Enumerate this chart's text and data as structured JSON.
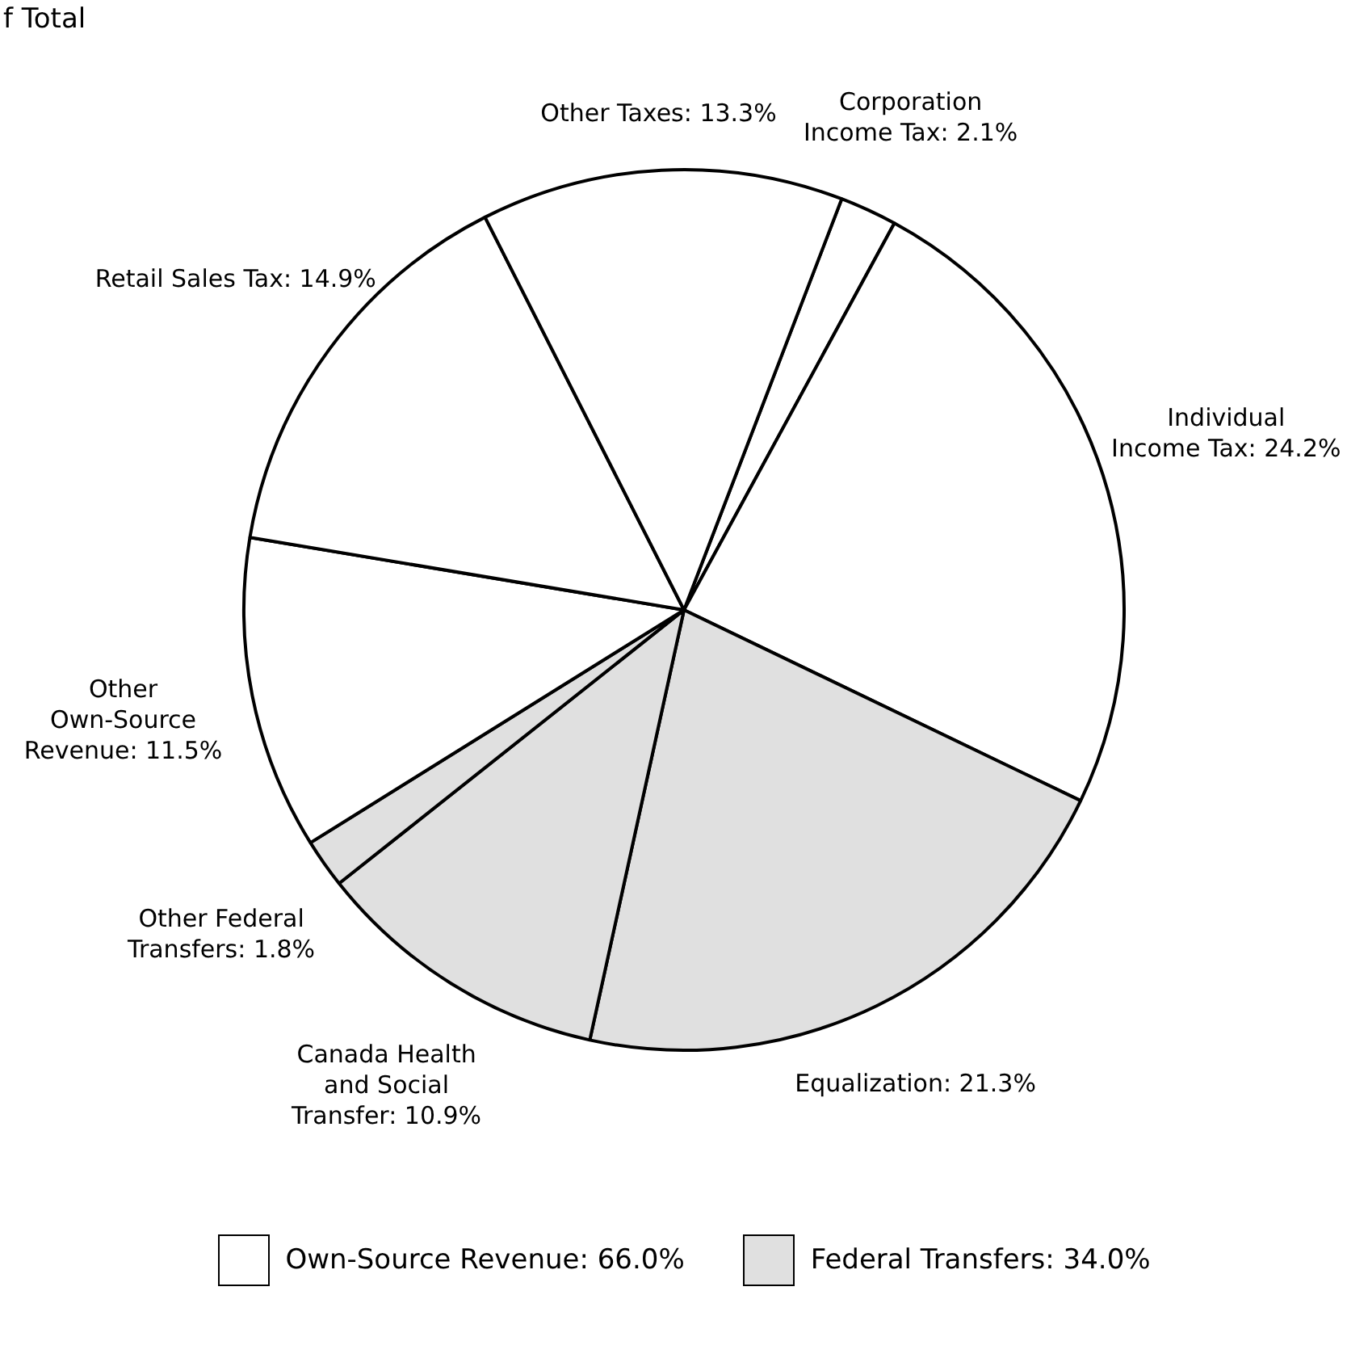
{
  "chart_data": {
    "type": "pie",
    "title": "f Total",
    "categories": [
      "Corporation Income Tax",
      "Individual Income Tax",
      "Equalization",
      "Canada Health and Social Transfer",
      "Other Federal Transfers",
      "Other Own-Source Revenue",
      "Retail Sales Tax",
      "Other Taxes"
    ],
    "values": [
      2.1,
      24.2,
      21.3,
      10.9,
      1.8,
      11.5,
      14.9,
      13.3
    ],
    "value_labels": [
      "2.1%",
      "24.2%",
      "21.3%",
      "10.9%",
      "1.8%",
      "11.5%",
      "14.9%",
      "13.3%"
    ],
    "colors": [
      "#ffffff",
      "#ffffff",
      "#e0e0e0",
      "#e0e0e0",
      "#e0e0e0",
      "#ffffff",
      "#ffffff",
      "#ffffff"
    ],
    "annotations": [
      "Own-Source Revenue: 66.0%",
      "Federal Transfers: 34.0%"
    ]
  }
}
